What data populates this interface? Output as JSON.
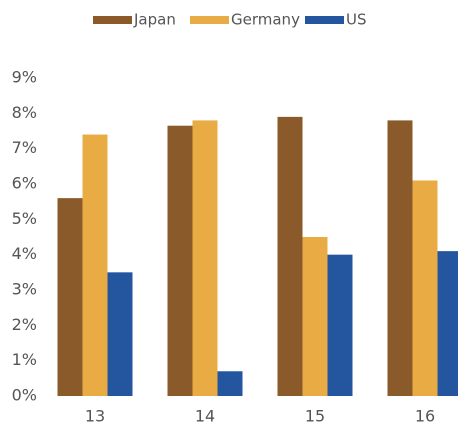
{
  "chart_data": {
    "type": "bar",
    "categories": [
      "13",
      "14",
      "15",
      "16"
    ],
    "series": [
      {
        "name": "Japan",
        "color": "#8b5a2b",
        "values": [
          5.6,
          7.65,
          7.9,
          7.8
        ]
      },
      {
        "name": "Germany",
        "color": "#e9ac45",
        "values": [
          7.4,
          7.8,
          4.5,
          6.1
        ]
      },
      {
        "name": "US",
        "color": "#2456a0",
        "values": [
          3.5,
          0.7,
          4.0,
          4.1
        ]
      }
    ],
    "ylim": [
      0,
      9
    ],
    "yticks": [
      {
        "value": 0,
        "label": "0%"
      },
      {
        "value": 1,
        "label": "1%"
      },
      {
        "value": 2,
        "label": "2%"
      },
      {
        "value": 3,
        "label": "3%"
      },
      {
        "value": 4,
        "label": "4%"
      },
      {
        "value": 5,
        "label": "5%"
      },
      {
        "value": 6,
        "label": "6%"
      },
      {
        "value": 7,
        "label": "7%"
      },
      {
        "value": 8,
        "label": "8%"
      },
      {
        "value": 9,
        "label": "9%"
      }
    ],
    "legend": "top",
    "grid": false
  }
}
